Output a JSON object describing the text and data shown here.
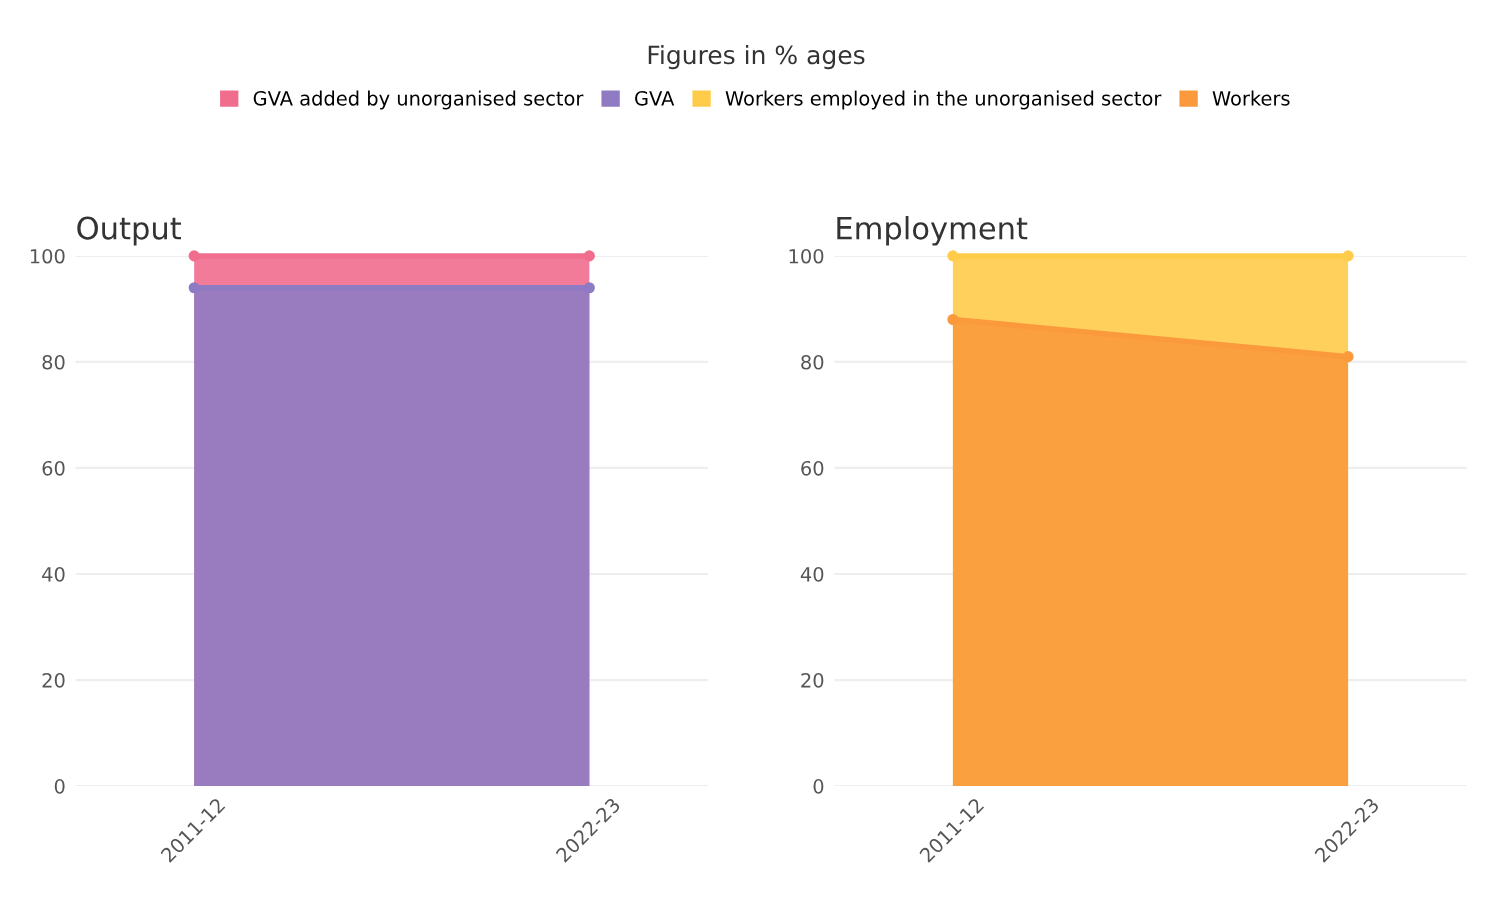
{
  "chart_data": [
    {
      "type": "area",
      "title": "Output",
      "subtitle": "Figures in % ages",
      "categories": [
        "2011-12",
        "2022-23"
      ],
      "ylim": [
        0,
        100
      ],
      "yticks": [
        0,
        20,
        40,
        60,
        80,
        100
      ],
      "grid": "y",
      "legend": "top",
      "marker": "circle",
      "series": [
        {
          "name": "GVA added by unorganised sector",
          "color": "#f06d8e",
          "values": [
            100,
            100
          ]
        },
        {
          "name": "GVA",
          "color": "#8f7bc4",
          "values": [
            94,
            94
          ]
        }
      ]
    },
    {
      "type": "area",
      "title": "Employment",
      "categories": [
        "2011-12",
        "2022-23"
      ],
      "ylim": [
        0,
        100
      ],
      "yticks": [
        0,
        20,
        40,
        60,
        80,
        100
      ],
      "grid": "y",
      "legend": "top",
      "marker": "circle",
      "series": [
        {
          "name": "Workers employed in the unorganised sector",
          "color": "#ffcb4a",
          "values": [
            100,
            100
          ]
        },
        {
          "name": "Workers",
          "color": "#fb9a3c",
          "values": [
            88,
            81
          ]
        }
      ]
    }
  ]
}
